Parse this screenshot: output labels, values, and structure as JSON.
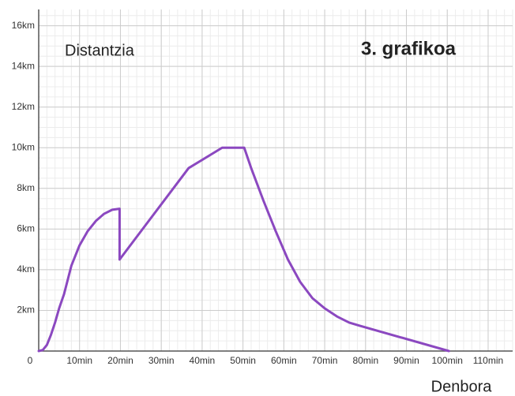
{
  "chart_data": {
    "type": "line",
    "title": "3. grafikoa",
    "y_label": "Distantzia",
    "x_label": "Denbora",
    "xlim": [
      0,
      116
    ],
    "ylim": [
      0,
      16.8
    ],
    "xticks": [
      0,
      {
        "value": 10,
        "label": "10min"
      },
      {
        "value": 20,
        "label": "20min"
      },
      {
        "value": 30,
        "label": "30min"
      },
      {
        "value": 40,
        "label": "40min"
      },
      {
        "value": 50,
        "label": "50min"
      },
      {
        "value": 60,
        "label": "60min"
      },
      {
        "value": 70,
        "label": "70min"
      },
      {
        "value": 80,
        "label": "80min"
      },
      {
        "value": 90,
        "label": "90min"
      },
      {
        "value": 100,
        "label": "100min"
      },
      {
        "value": 110,
        "label": "110min"
      }
    ],
    "yticks": [
      {
        "value": 2,
        "label": "2km"
      },
      {
        "value": 4,
        "label": "4km"
      },
      {
        "value": 6,
        "label": "6km"
      },
      {
        "value": 8,
        "label": "8km"
      },
      {
        "value": 10,
        "label": "10km"
      },
      {
        "value": 12,
        "label": "12km"
      },
      {
        "value": 14,
        "label": "14km"
      },
      {
        "value": 16,
        "label": "16km"
      }
    ],
    "minor_grid": {
      "x": 2,
      "y": 0.5
    },
    "grid": true,
    "series": [
      {
        "color": "#8b48c0",
        "x": [
          0,
          1,
          2,
          3,
          4,
          5,
          6.2,
          8,
          10,
          12,
          14,
          16,
          18,
          19.8,
          19.8,
          36.7,
          44.9,
          50.3,
          52,
          55,
          58,
          61,
          64,
          67,
          70,
          73,
          76,
          78.5,
          100.4
        ],
        "values": [
          0,
          0.05,
          0.3,
          0.8,
          1.4,
          2.1,
          2.8,
          4.2,
          5.2,
          5.9,
          6.4,
          6.75,
          6.95,
          7.0,
          4.5,
          9.0,
          10,
          10,
          9.0,
          7.4,
          5.9,
          4.5,
          3.4,
          2.6,
          2.1,
          1.7,
          1.4,
          1.25,
          0
        ]
      }
    ]
  }
}
